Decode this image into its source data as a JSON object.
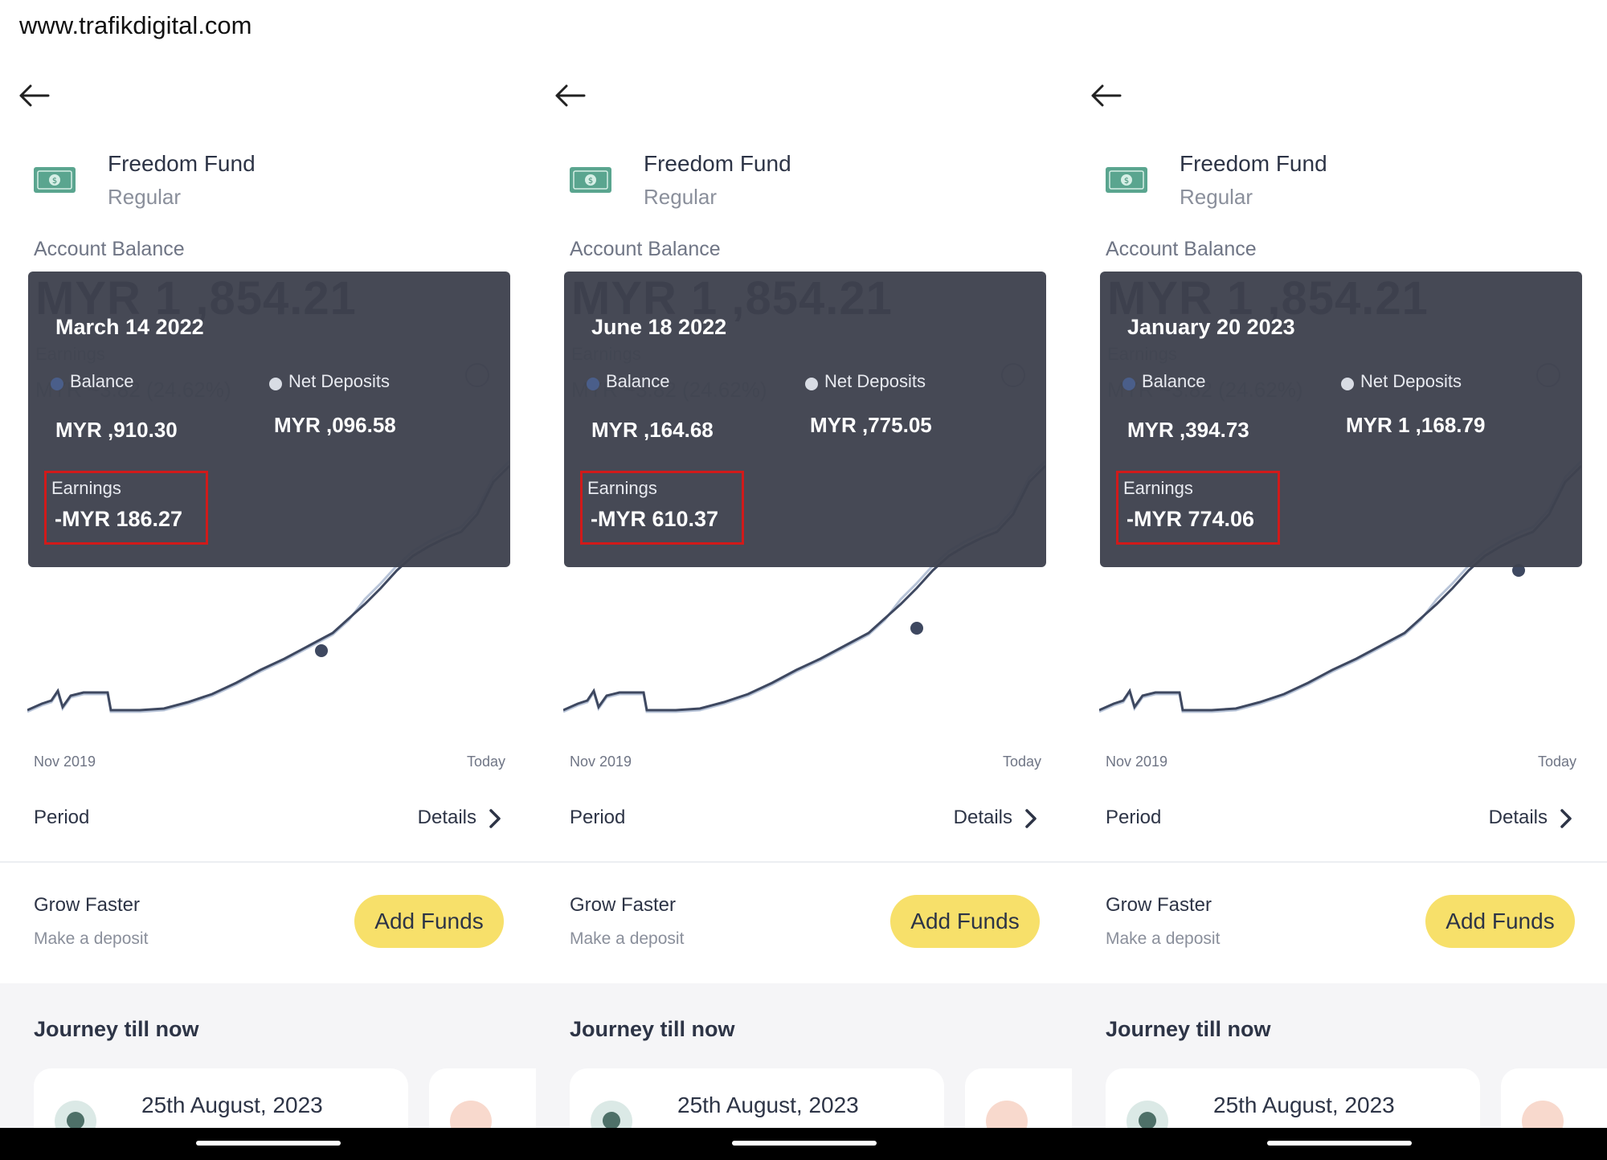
{
  "watermark": "www.trafikdigital.com",
  "panels": [
    {
      "fund_name": "Freedom Fund",
      "fund_type": "Regular",
      "account_balance_label": "Account Balance",
      "balance": "MYR 1 ,854.21",
      "bg_earnings_label": "Earnings",
      "bg_earnings_value": "MYR ~3.82 (24.62%)",
      "tooltip": {
        "date": "March 14 2022",
        "balance_label": "Balance",
        "net_label": "Net Deposits",
        "balance_value": "MYR  ,910.30",
        "net_value": "MYR  ,096.58",
        "earnings_label": "Earnings",
        "earnings_value": "-MYR 186.27"
      },
      "axis_start": "Nov 2019",
      "axis_end": "Today",
      "period_label": "Period",
      "details_label": "Details",
      "grow_title": "Grow Faster",
      "grow_sub": "Make a deposit",
      "add_funds_label": "Add Funds",
      "journey_title": "Journey till now",
      "journey_card_date": "25th August, 2023"
    },
    {
      "fund_name": "Freedom Fund",
      "fund_type": "Regular",
      "account_balance_label": "Account Balance",
      "balance": "MYR 1 ,854.21",
      "bg_earnings_label": "Earnings",
      "bg_earnings_value": "MYR ~3.82 (24.62%)",
      "tooltip": {
        "date": "June 18 2022",
        "balance_label": "Balance",
        "net_label": "Net Deposits",
        "balance_value": "MYR  ,164.68",
        "net_value": "MYR  ,775.05",
        "earnings_label": "Earnings",
        "earnings_value": "-MYR 610.37"
      },
      "axis_start": "Nov 2019",
      "axis_end": "Today",
      "period_label": "Period",
      "details_label": "Details",
      "grow_title": "Grow Faster",
      "grow_sub": "Make a deposit",
      "add_funds_label": "Add Funds",
      "journey_title": "Journey till now",
      "journey_card_date": "25th August, 2023"
    },
    {
      "fund_name": "Freedom Fund",
      "fund_type": "Regular",
      "account_balance_label": "Account Balance",
      "balance": "MYR 1 ,854.21",
      "bg_earnings_label": "Earnings",
      "bg_earnings_value": "MYR ~3.82 (24.62%)",
      "tooltip": {
        "date": "January 20 2023",
        "balance_label": "Balance",
        "net_label": "Net Deposits",
        "balance_value": "MYR  ,394.73",
        "net_value": "MYR 1  ,168.79",
        "earnings_label": "Earnings",
        "earnings_value": "-MYR 774.06"
      },
      "axis_start": "Nov 2019",
      "axis_end": "Today",
      "period_label": "Period",
      "details_label": "Details",
      "grow_title": "Grow Faster",
      "grow_sub": "Make a deposit",
      "add_funds_label": "Add Funds",
      "journey_title": "Journey till now",
      "journey_card_date": "25th August, 2023"
    }
  ],
  "icons": {
    "back": "arrow-left-icon",
    "fund": "money-bill-icon",
    "details": "chevron-right-icon",
    "journey": "clock-icon"
  },
  "colors": {
    "tooltip_bg": "#3e424e",
    "highlight_box": "#d11a1a",
    "add_funds_button": "#f7e06a",
    "line_balance": "#3e4860",
    "line_deposits": "#b8c4d8"
  }
}
